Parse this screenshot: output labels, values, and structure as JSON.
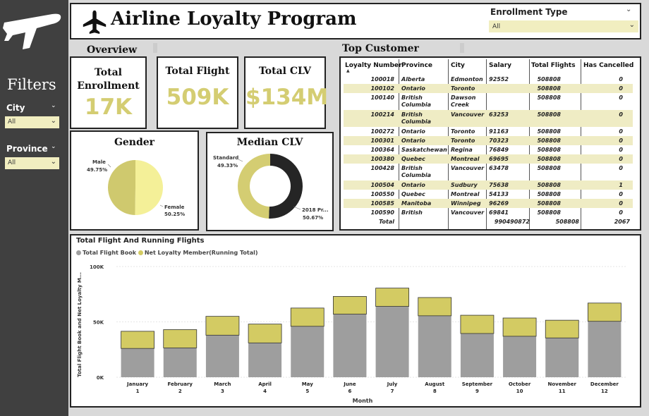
{
  "sidebar": {
    "title": "Filters",
    "city": {
      "label": "City",
      "value": "All"
    },
    "province": {
      "label": "Province",
      "value": "All"
    }
  },
  "header": {
    "title": "Airline Loyalty Program",
    "enrollment": {
      "label": "Enrollment Type",
      "value": "All"
    }
  },
  "sections": {
    "overview": "Overview",
    "top_customer": "Top Customer"
  },
  "kpis": [
    {
      "title_lines": [
        "Total",
        "Enrollment"
      ],
      "value": "17K"
    },
    {
      "title_lines": [
        "Total  Flight"
      ],
      "value": "509K"
    },
    {
      "title_lines": [
        "Total CLV"
      ],
      "value": "$134M"
    }
  ],
  "gender": {
    "title": "Gender",
    "slices": [
      {
        "name": "Male",
        "pct": "49.75%",
        "value": 49.75,
        "color": "#cfc96e"
      },
      {
        "name": "Female",
        "pct": "50.25%",
        "value": 50.25,
        "color": "#f4f098"
      }
    ]
  },
  "median_clv": {
    "title": "Median CLV",
    "slices": [
      {
        "name": "Standard",
        "pct": "49.33%",
        "value": 49.33,
        "color": "#d4cd72"
      },
      {
        "name": "2018 Pr...",
        "pct": "50.67%",
        "value": 50.67,
        "color": "#252525"
      }
    ]
  },
  "table": {
    "headers": [
      "Loyalty Number",
      "Province",
      "City",
      "Salary",
      "Total Flights",
      "Has Cancelled"
    ],
    "rows": [
      {
        "id": "100018",
        "province": [
          "Alberta"
        ],
        "city": [
          "Edmonton"
        ],
        "salary": "92552",
        "flights": "508808",
        "cancelled": "0"
      },
      {
        "id": "100102",
        "province": [
          "Ontario"
        ],
        "city": [
          "Toronto"
        ],
        "salary": "",
        "flights": "508808",
        "cancelled": "0"
      },
      {
        "id": "100140",
        "province": [
          "British",
          "Columbia"
        ],
        "city": [
          "Dawson",
          "Creek"
        ],
        "salary": "",
        "flights": "508808",
        "cancelled": "0"
      },
      {
        "id": "100214",
        "province": [
          "British",
          "Columbia"
        ],
        "city": [
          "Vancouver"
        ],
        "salary": "63253",
        "flights": "508808",
        "cancelled": "0"
      },
      {
        "id": "100272",
        "province": [
          "Ontario"
        ],
        "city": [
          "Toronto"
        ],
        "salary": "91163",
        "flights": "508808",
        "cancelled": "0"
      },
      {
        "id": "100301",
        "province": [
          "Ontario"
        ],
        "city": [
          "Toronto"
        ],
        "salary": "70323",
        "flights": "508808",
        "cancelled": "0"
      },
      {
        "id": "100364",
        "province": [
          "Saskatchewan"
        ],
        "city": [
          "Regina"
        ],
        "salary": "76849",
        "flights": "508808",
        "cancelled": "0"
      },
      {
        "id": "100380",
        "province": [
          "Quebec"
        ],
        "city": [
          "Montreal"
        ],
        "salary": "69695",
        "flights": "508808",
        "cancelled": "0"
      },
      {
        "id": "100428",
        "province": [
          "British",
          "Columbia"
        ],
        "city": [
          "Vancouver"
        ],
        "salary": "63478",
        "flights": "508808",
        "cancelled": "0"
      },
      {
        "id": "100504",
        "province": [
          "Ontario"
        ],
        "city": [
          "Sudbury"
        ],
        "salary": "75638",
        "flights": "508808",
        "cancelled": "1"
      },
      {
        "id": "100550",
        "province": [
          "Quebec"
        ],
        "city": [
          "Montreal"
        ],
        "salary": "54133",
        "flights": "508808",
        "cancelled": "0"
      },
      {
        "id": "100585",
        "province": [
          "Manitoba"
        ],
        "city": [
          "Winnipeg"
        ],
        "salary": "96269",
        "flights": "508808",
        "cancelled": "0"
      },
      {
        "id": "100590",
        "province": [
          "British"
        ],
        "city": [
          "Vancouver"
        ],
        "salary": "69841",
        "flights": "508808",
        "cancelled": "0"
      }
    ],
    "total": {
      "label": "Total",
      "salary": "990490872",
      "flights": "508808",
      "cancelled": "2067"
    },
    "stripe_color": "#efecc4"
  },
  "chart_data": {
    "type": "bar",
    "title": "Total Flight And Running Flights",
    "xlabel": "Month",
    "ylabel": "Total Flight Book and Net Loyalty M...",
    "ylim": [
      0,
      100000
    ],
    "yticks": [
      "0K",
      "50K",
      "100K"
    ],
    "categories": [
      "January",
      "February",
      "March",
      "April",
      "May",
      "June",
      "July",
      "August",
      "September",
      "October",
      "November",
      "December"
    ],
    "category_numbers": [
      "1",
      "2",
      "3",
      "4",
      "5",
      "6",
      "7",
      "8",
      "9",
      "10",
      "11",
      "12"
    ],
    "series": [
      {
        "name": "Total Flight Book",
        "color": "#9e9e9e",
        "values": [
          26000,
          26500,
          38000,
          31000,
          46000,
          57000,
          64000,
          55500,
          39500,
          37000,
          35500,
          50500
        ]
      },
      {
        "name": "Net Loyalty Member(Running Total)",
        "color": "#d3cb63",
        "values": [
          15500,
          16500,
          17000,
          17000,
          16500,
          16000,
          16500,
          16500,
          16500,
          16500,
          16000,
          16500
        ]
      }
    ]
  }
}
